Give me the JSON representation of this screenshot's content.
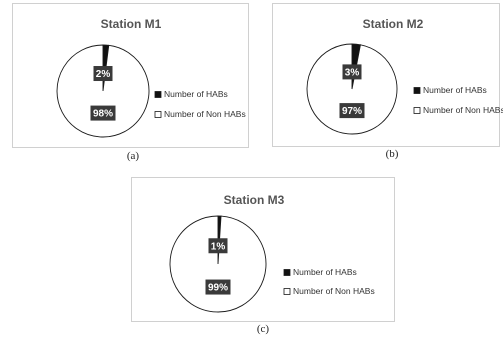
{
  "colors": {
    "hab": "#111111",
    "non_hab": "#ffffff",
    "outline": "#1a1a1a",
    "label_box": "#3a3a3a"
  },
  "captions": [
    "(a)",
    "(b)",
    "(c)"
  ],
  "chart_data": [
    {
      "type": "pie",
      "title": "Station M1",
      "series": [
        {
          "name": "Number of HABs",
          "value": 2,
          "label": "2%"
        },
        {
          "name": "Number of Non HABs",
          "value": 98,
          "label": "98%"
        }
      ],
      "legend": "right"
    },
    {
      "type": "pie",
      "title": "Station M2",
      "series": [
        {
          "name": "Number of HABs",
          "value": 3,
          "label": "3%"
        },
        {
          "name": "Number of Non HABs",
          "value": 97,
          "label": "97%"
        }
      ],
      "legend": "right"
    },
    {
      "type": "pie",
      "title": "Station M3",
      "series": [
        {
          "name": "Number of HABs",
          "value": 1,
          "label": "1%"
        },
        {
          "name": "Number of Non HABs",
          "value": 99,
          "label": "99%"
        }
      ],
      "legend": "right"
    }
  ]
}
